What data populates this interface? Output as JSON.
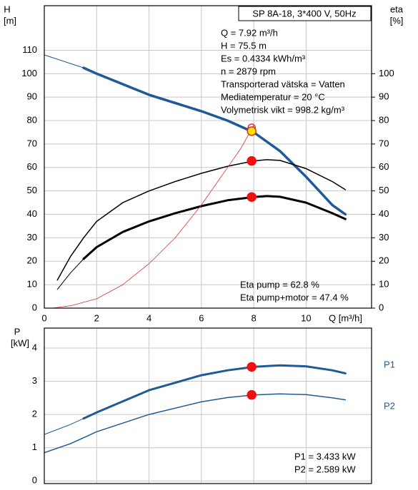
{
  "chart_data": [
    {
      "type": "line",
      "title": "SP 8A-18, 3*400 V, 50Hz",
      "ylabel": [
        "H",
        "[m]"
      ],
      "y2label": [
        "eta",
        "[%]"
      ],
      "xlabel": "Q [m³/h]",
      "annotations": [
        "Q = 7.92 m³/h",
        "H = 75.5 m",
        "Es = 0.4334 kWh/m³",
        "n = 2879 rpm",
        "Transporterad vätska = Vatten",
        "Mediatemperatur = 20 °C",
        "Volymetrisk vikt = 998.2 kg/m³"
      ],
      "notes": [
        "Eta pump = 62.8 %",
        "Eta pump+motor = 47.4 %"
      ],
      "xlim": [
        0,
        12.5
      ],
      "xticks": [
        0,
        2,
        4,
        6,
        8,
        10
      ],
      "ylim": [
        0,
        129
      ],
      "yticks": [
        0,
        10,
        20,
        30,
        40,
        50,
        60,
        70,
        80,
        90,
        100,
        110
      ],
      "y2lim": [
        0,
        129
      ],
      "y2ticks": [
        0,
        10,
        20,
        30,
        40,
        50,
        60,
        70,
        80,
        90,
        100
      ],
      "grid": true,
      "series": [
        {
          "color": "#1f5a96",
          "line_width": 1,
          "x": [
            0,
            1.5
          ],
          "values": [
            108,
            102.5
          ]
        },
        {
          "color": "#1f5a96",
          "line_width": 3.5,
          "x": [
            1.5,
            2,
            4,
            6,
            7,
            8,
            9,
            10,
            11,
            11.5
          ],
          "values": [
            102.5,
            100,
            91,
            84,
            80,
            75,
            67,
            56,
            44,
            40
          ]
        },
        {
          "color": "#000000",
          "line_width": 1.5,
          "axis": "y2",
          "x": [
            0.5,
            1,
            1.5,
            2,
            3,
            4,
            5,
            6,
            7,
            8,
            8.5,
            9,
            10,
            11,
            11.5
          ],
          "values": [
            12,
            22,
            30,
            37,
            45,
            50,
            54,
            57.5,
            60.5,
            62.8,
            63.3,
            63,
            59.5,
            54,
            50.5
          ]
        },
        {
          "color": "#000000",
          "line_width": 1,
          "axis": "y2",
          "x": [
            0.5,
            1,
            1.5
          ],
          "values": [
            8,
            15,
            21
          ]
        },
        {
          "color": "#000000",
          "line_width": 3,
          "axis": "y2",
          "x": [
            1.5,
            2,
            3,
            4,
            5,
            6,
            7,
            8,
            8.5,
            9,
            10,
            11,
            11.5
          ],
          "values": [
            21,
            26,
            32.5,
            37,
            40.5,
            43.5,
            46,
            47.4,
            47.8,
            47.5,
            45,
            40.5,
            38
          ]
        },
        {
          "color": "#e03030",
          "line_width": 0.8,
          "axis": "y2",
          "x": [
            0.3,
            1,
            2,
            3,
            4,
            5,
            6,
            7,
            7.5,
            8
          ],
          "values": [
            0,
            1,
            4,
            10,
            19,
            30,
            44,
            60,
            68,
            78
          ]
        }
      ],
      "points": [
        {
          "x": 7.92,
          "y": 77,
          "color": "none",
          "stroke": "#e03030",
          "r": 5
        },
        {
          "x": 7.92,
          "y": 75.5,
          "color": "#f5e600",
          "stroke": "#e03030",
          "r": 6
        },
        {
          "x": 7.92,
          "y": 62.8,
          "color": "#ee1111",
          "stroke": "#ee1111",
          "r": 6
        },
        {
          "x": 7.92,
          "y": 47.4,
          "color": "#ee1111",
          "stroke": "#ee1111",
          "r": 6
        }
      ]
    },
    {
      "type": "line",
      "ylabel": [
        "P",
        "[kW]"
      ],
      "notes": [
        "P1 = 3.433 kW",
        "P2 = 2.589 kW"
      ],
      "xlim": [
        0,
        12.5
      ],
      "xticks": [
        0,
        2,
        4,
        6,
        8,
        10
      ],
      "ylim": [
        -0.08,
        4.6
      ],
      "yticks": [
        0,
        1,
        2,
        3,
        4
      ],
      "grid": true,
      "series": [
        {
          "name": "P1",
          "color": "#1f5a96",
          "line_width": 1,
          "x": [
            0,
            1,
            1.5
          ],
          "values": [
            1.4,
            1.7,
            1.88
          ]
        },
        {
          "color": "#1f5a96",
          "line_width": 3,
          "x": [
            1.5,
            2,
            4,
            6,
            7,
            8,
            9,
            10,
            11,
            11.5
          ],
          "values": [
            1.88,
            2.06,
            2.73,
            3.18,
            3.33,
            3.433,
            3.48,
            3.45,
            3.33,
            3.24
          ]
        },
        {
          "name": "P2",
          "color": "#1f5a96",
          "line_width": 1.5,
          "x": [
            0,
            1,
            1.5,
            2,
            4,
            6,
            7,
            8,
            9,
            10,
            11,
            11.5
          ],
          "values": [
            0.85,
            1.12,
            1.3,
            1.48,
            2.0,
            2.38,
            2.51,
            2.589,
            2.62,
            2.6,
            2.5,
            2.44
          ]
        }
      ],
      "points": [
        {
          "x": 7.92,
          "y": 3.433,
          "color": "#ee1111",
          "stroke": "#ee1111",
          "r": 6
        },
        {
          "x": 7.92,
          "y": 2.589,
          "color": "#ee1111",
          "stroke": "#ee1111",
          "r": 6
        }
      ]
    }
  ]
}
